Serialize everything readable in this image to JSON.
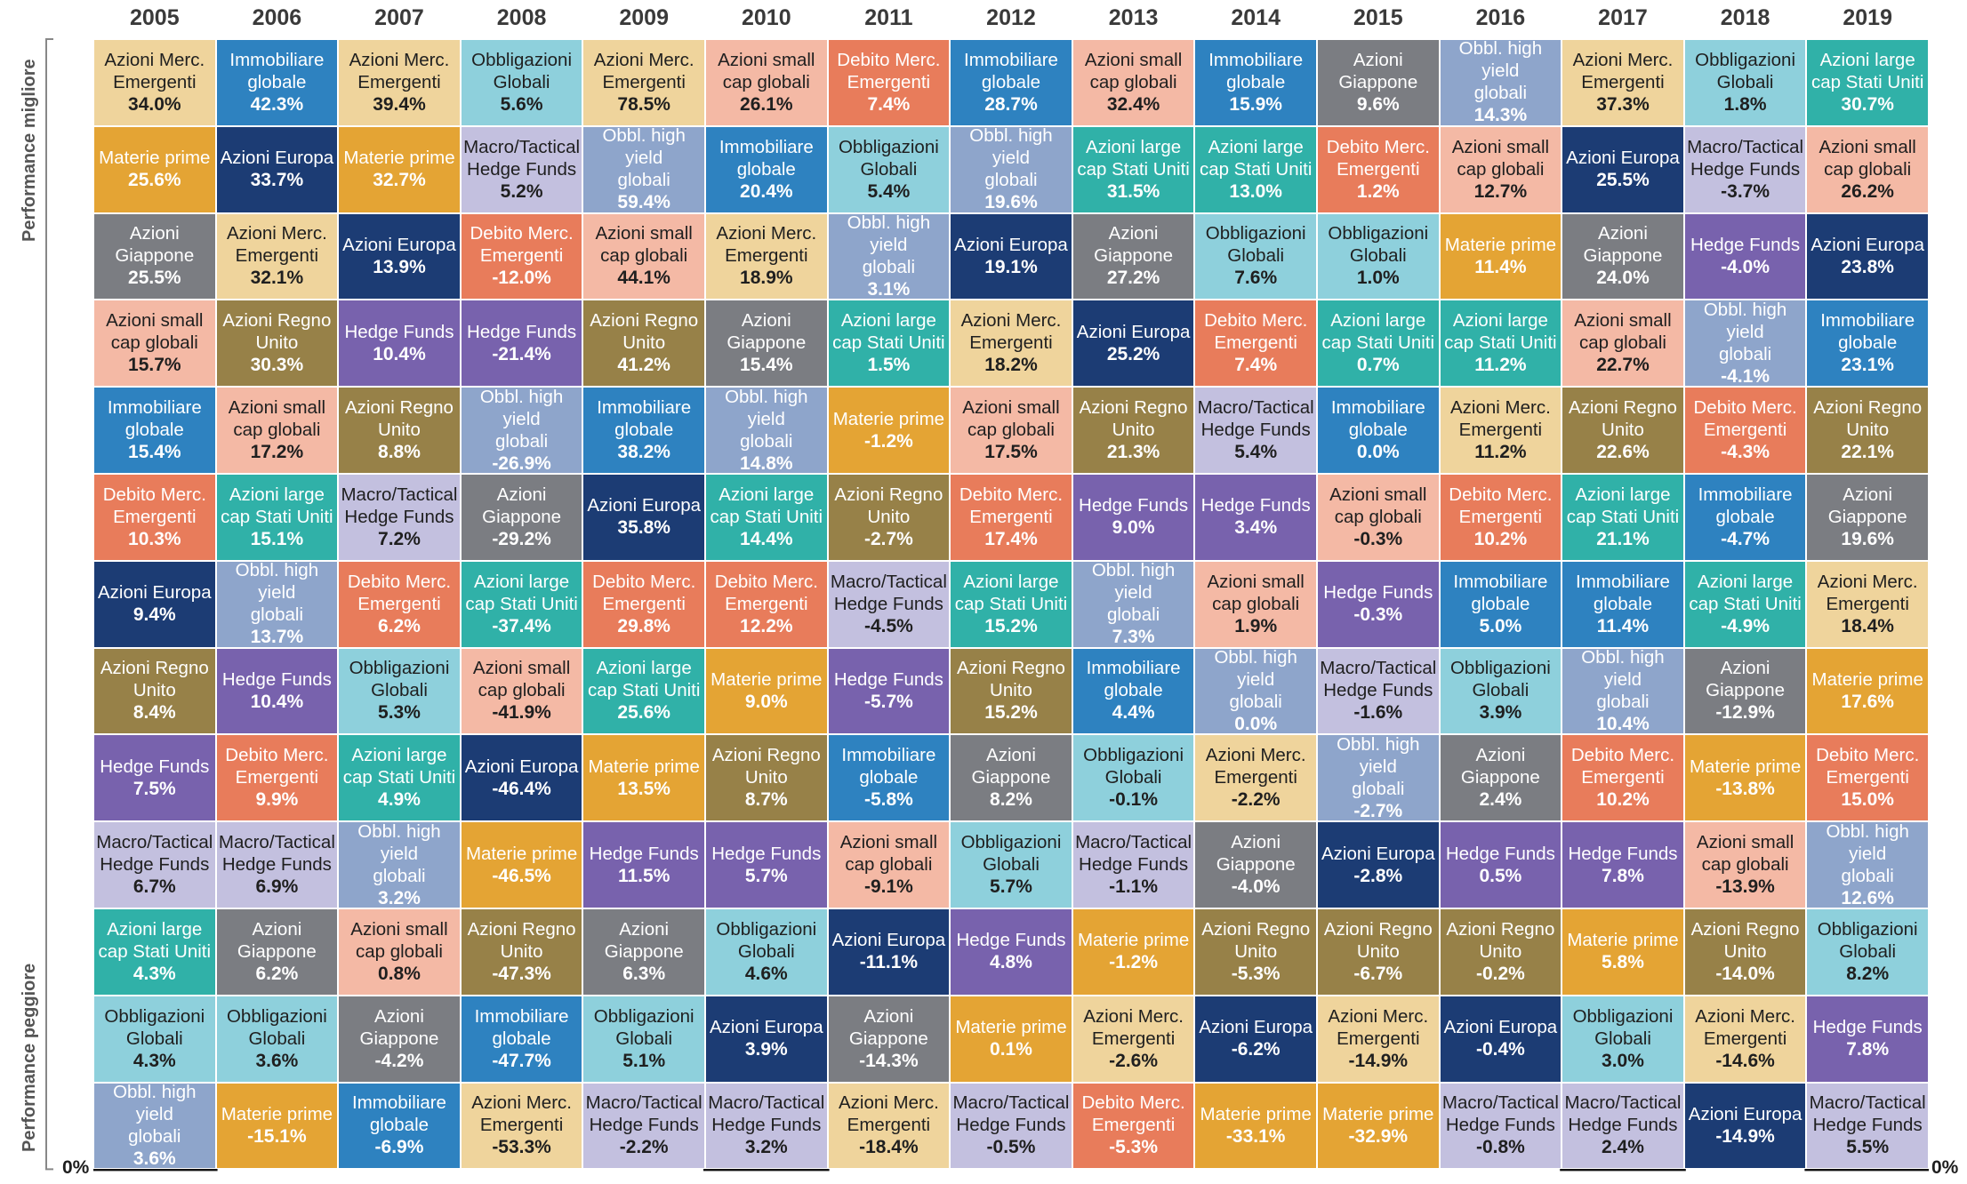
{
  "labels": {
    "top": "Performance migliore",
    "bottom": "Performance peggiore",
    "zero_left": "0%",
    "zero_right": "0%"
  },
  "colors": {
    "Azioni Merc. Emergenti": "#efd49c",
    "Immobiliare globale": "#2e82c0",
    "Obbligazioni Globali": "#8ed0dc",
    "Azioni small cap globali": "#f4b9a5",
    "Debito Merc. Emergenti": "#e87c5b",
    "Azioni Giappone": "#7b7d82",
    "Obbl. high yield globali": "#8ea5cb",
    "Azioni large cap Stati Uniti": "#30b1a8",
    "Materie prime": "#e4a434",
    "Azioni Europa": "#1c3c74",
    "Macro/Tactical Hedge Funds": "#c3c0df",
    "Hedge Funds": "#7862ad",
    "Azioni Regno Unito": "#978148"
  },
  "text_dark": [
    "Azioni Merc. Emergenti",
    "Obbligazioni Globali",
    "Azioni small cap globali",
    "Macro/Tactical Hedge Funds"
  ],
  "chart_data": {
    "type": "table",
    "title": "",
    "years": [
      "2005",
      "2006",
      "2007",
      "2008",
      "2009",
      "2010",
      "2011",
      "2012",
      "2013",
      "2014",
      "2015",
      "2016",
      "2017",
      "2018",
      "2019"
    ],
    "rank_order": "best to worst",
    "columns": [
      [
        [
          "Azioni Merc.\nEmergenti",
          "34.0%"
        ],
        [
          "Materie prime",
          "25.6%"
        ],
        [
          "Azioni\nGiappone",
          "25.5%"
        ],
        [
          "Azioni small\ncap globali",
          "15.7%"
        ],
        [
          "Immobiliare\nglobale",
          "15.4%"
        ],
        [
          "Debito Merc.\nEmergenti",
          "10.3%"
        ],
        [
          "Azioni Europa",
          "9.4%"
        ],
        [
          "Azioni Regno\nUnito",
          "8.4%"
        ],
        [
          "Hedge Funds",
          "7.5%"
        ],
        [
          "Macro/Tactical\nHedge Funds",
          "6.7%"
        ],
        [
          "Azioni large\ncap Stati Uniti",
          "4.3%"
        ],
        [
          "Obbligazioni\nGlobali",
          "4.3%"
        ],
        [
          "Obbl. high yield\nglobali",
          "3.6%"
        ]
      ],
      [
        [
          "Immobiliare\nglobale",
          "42.3%"
        ],
        [
          "Azioni Europa",
          "33.7%"
        ],
        [
          "Azioni Merc.\nEmergenti",
          "32.1%"
        ],
        [
          "Azioni Regno\nUnito",
          "30.3%"
        ],
        [
          "Azioni small\ncap globali",
          "17.2%"
        ],
        [
          "Azioni large\ncap Stati Uniti",
          "15.1%"
        ],
        [
          "Obbl. high yield\nglobali",
          "13.7%"
        ],
        [
          "Hedge Funds",
          "10.4%"
        ],
        [
          "Debito Merc.\nEmergenti",
          "9.9%"
        ],
        [
          "Macro/Tactical\nHedge Funds",
          "6.9%"
        ],
        [
          "Azioni\nGiappone",
          "6.2%"
        ],
        [
          "Obbligazioni\nGlobali",
          "3.6%"
        ],
        [
          "Materie prime",
          "-15.1%"
        ]
      ],
      [
        [
          "Azioni Merc.\nEmergenti",
          "39.4%"
        ],
        [
          "Materie prime",
          "32.7%"
        ],
        [
          "Azioni Europa",
          "13.9%"
        ],
        [
          "Hedge Funds",
          "10.4%"
        ],
        [
          "Azioni Regno\nUnito",
          "8.8%"
        ],
        [
          "Macro/Tactical\nHedge Funds",
          "7.2%"
        ],
        [
          "Debito Merc.\nEmergenti",
          "6.2%"
        ],
        [
          "Obbligazioni\nGlobali",
          "5.3%"
        ],
        [
          "Azioni large\ncap Stati Uniti",
          "4.9%"
        ],
        [
          "Obbl. high yield\nglobali",
          "3.2%"
        ],
        [
          "Azioni small\ncap globali",
          "0.8%"
        ],
        [
          "Azioni\nGiappone",
          "-4.2%"
        ],
        [
          "Immobiliare\nglobale",
          "-6.9%"
        ]
      ],
      [
        [
          "Obbligazioni\nGlobali",
          "5.6%"
        ],
        [
          "Macro/Tactical\nHedge Funds",
          "5.2%"
        ],
        [
          "Debito Merc.\nEmergenti",
          "-12.0%"
        ],
        [
          "Hedge Funds",
          "-21.4%"
        ],
        [
          "Obbl. high yield\nglobali",
          "-26.9%"
        ],
        [
          "Azioni\nGiappone",
          "-29.2%"
        ],
        [
          "Azioni large\ncap Stati Uniti",
          "-37.4%"
        ],
        [
          "Azioni small\ncap globali",
          "-41.9%"
        ],
        [
          "Azioni Europa",
          "-46.4%"
        ],
        [
          "Materie prime",
          "-46.5%"
        ],
        [
          "Azioni Regno\nUnito",
          "-47.3%"
        ],
        [
          "Immobiliare\nglobale",
          "-47.7%"
        ],
        [
          "Azioni Merc.\nEmergenti",
          "-53.3%"
        ]
      ],
      [
        [
          "Azioni Merc.\nEmergenti",
          "78.5%"
        ],
        [
          "Obbl. high yield\nglobali",
          "59.4%"
        ],
        [
          "Azioni small\ncap globali",
          "44.1%"
        ],
        [
          "Azioni Regno\nUnito",
          "41.2%"
        ],
        [
          "Immobiliare\nglobale",
          "38.2%"
        ],
        [
          "Azioni Europa",
          "35.8%"
        ],
        [
          "Debito Merc.\nEmergenti",
          "29.8%"
        ],
        [
          "Azioni large\ncap Stati Uniti",
          "25.6%"
        ],
        [
          "Materie prime",
          "13.5%"
        ],
        [
          "Hedge Funds",
          "11.5%"
        ],
        [
          "Azioni\nGiappone",
          "6.3%"
        ],
        [
          "Obbligazioni\nGlobali",
          "5.1%"
        ],
        [
          "Macro/Tactical\nHedge Funds",
          "-2.2%"
        ]
      ],
      [
        [
          "Azioni small\ncap globali",
          "26.1%"
        ],
        [
          "Immobiliare\nglobale",
          "20.4%"
        ],
        [
          "Azioni Merc.\nEmergenti",
          "18.9%"
        ],
        [
          "Azioni\nGiappone",
          "15.4%"
        ],
        [
          "Obbl. high yield\nglobali",
          "14.8%"
        ],
        [
          "Azioni large\ncap Stati Uniti",
          "14.4%"
        ],
        [
          "Debito Merc.\nEmergenti",
          "12.2%"
        ],
        [
          "Materie prime",
          "9.0%"
        ],
        [
          "Azioni Regno\nUnito",
          "8.7%"
        ],
        [
          "Hedge Funds",
          "5.7%"
        ],
        [
          "Obbligazioni\nGlobali",
          "4.6%"
        ],
        [
          "Azioni Europa",
          "3.9%"
        ],
        [
          "Macro/Tactical\nHedge Funds",
          "3.2%"
        ]
      ],
      [
        [
          "Debito Merc.\nEmergenti",
          "7.4%"
        ],
        [
          "Obbligazioni\nGlobali",
          "5.4%"
        ],
        [
          "Obbl. high yield\nglobali",
          "3.1%"
        ],
        [
          "Azioni large\ncap Stati Uniti",
          "1.5%"
        ],
        [
          "Materie prime",
          "-1.2%"
        ],
        [
          "Azioni Regno\nUnito",
          "-2.7%"
        ],
        [
          "Macro/Tactical\nHedge Funds",
          "-4.5%"
        ],
        [
          "Hedge Funds",
          "-5.7%"
        ],
        [
          "Immobiliare\nglobale",
          "-5.8%"
        ],
        [
          "Azioni small\ncap globali",
          "-9.1%"
        ],
        [
          "Azioni Europa",
          "-11.1%"
        ],
        [
          "Azioni\nGiappone",
          "-14.3%"
        ],
        [
          "Azioni Merc.\nEmergenti",
          "-18.4%"
        ]
      ],
      [
        [
          "Immobiliare\nglobale",
          "28.7%"
        ],
        [
          "Obbl. high yield\nglobali",
          "19.6%"
        ],
        [
          "Azioni Europa",
          "19.1%"
        ],
        [
          "Azioni Merc.\nEmergenti",
          "18.2%"
        ],
        [
          "Azioni small\ncap globali",
          "17.5%"
        ],
        [
          "Debito Merc.\nEmergenti",
          "17.4%"
        ],
        [
          "Azioni large\ncap Stati Uniti",
          "15.2%"
        ],
        [
          "Azioni Regno\nUnito",
          "15.2%"
        ],
        [
          "Azioni\nGiappone",
          "8.2%"
        ],
        [
          "Obbligazioni\nGlobali",
          "5.7%"
        ],
        [
          "Hedge Funds",
          "4.8%"
        ],
        [
          "Materie prime",
          "0.1%"
        ],
        [
          "Macro/Tactical\nHedge Funds",
          "-0.5%"
        ]
      ],
      [
        [
          "Azioni small\ncap globali",
          "32.4%"
        ],
        [
          "Azioni large\ncap Stati Uniti",
          "31.5%"
        ],
        [
          "Azioni\nGiappone",
          "27.2%"
        ],
        [
          "Azioni Europa",
          "25.2%"
        ],
        [
          "Azioni Regno\nUnito",
          "21.3%"
        ],
        [
          "Hedge Funds",
          "9.0%"
        ],
        [
          "Obbl. high yield\nglobali",
          "7.3%"
        ],
        [
          "Immobiliare\nglobale",
          "4.4%"
        ],
        [
          "Obbligazioni\nGlobali",
          "-0.1%"
        ],
        [
          "Macro/Tactical\nHedge Funds",
          "-1.1%"
        ],
        [
          "Materie prime",
          "-1.2%"
        ],
        [
          "Azioni Merc.\nEmergenti",
          "-2.6%"
        ],
        [
          "Debito Merc.\nEmergenti",
          "-5.3%"
        ]
      ],
      [
        [
          "Immobiliare\nglobale",
          "15.9%"
        ],
        [
          "Azioni large\ncap Stati Uniti",
          "13.0%"
        ],
        [
          "Obbligazioni\nGlobali",
          "7.6%"
        ],
        [
          "Debito Merc.\nEmergenti",
          "7.4%"
        ],
        [
          "Macro/Tactical\nHedge Funds",
          "5.4%"
        ],
        [
          "Hedge Funds",
          "3.4%"
        ],
        [
          "Azioni small\ncap globali",
          "1.9%"
        ],
        [
          "Obbl. high yield\nglobali",
          "0.0%"
        ],
        [
          "Azioni Merc.\nEmergenti",
          "-2.2%"
        ],
        [
          "Azioni\nGiappone",
          "-4.0%"
        ],
        [
          "Azioni Regno\nUnito",
          "-5.3%"
        ],
        [
          "Azioni Europa",
          "-6.2%"
        ],
        [
          "Materie prime",
          "-33.1%"
        ]
      ],
      [
        [
          "Azioni\nGiappone",
          "9.6%"
        ],
        [
          "Debito Merc.\nEmergenti",
          "1.2%"
        ],
        [
          "Obbligazioni\nGlobali",
          "1.0%"
        ],
        [
          "Azioni large\ncap Stati Uniti",
          "0.7%"
        ],
        [
          "Immobiliare\nglobale",
          "0.0%"
        ],
        [
          "Azioni small\ncap globali",
          "-0.3%"
        ],
        [
          "Hedge Funds",
          "-0.3%"
        ],
        [
          "Macro/Tactical\nHedge Funds",
          "-1.6%"
        ],
        [
          "Obbl. high yield\nglobali",
          "-2.7%"
        ],
        [
          "Azioni Europa",
          "-2.8%"
        ],
        [
          "Azioni Regno\nUnito",
          "-6.7%"
        ],
        [
          "Azioni Merc.\nEmergenti",
          "-14.9%"
        ],
        [
          "Materie prime",
          "-32.9%"
        ]
      ],
      [
        [
          "Obbl. high yield\nglobali",
          "14.3%"
        ],
        [
          "Azioni small\ncap globali",
          "12.7%"
        ],
        [
          "Materie prime",
          "11.4%"
        ],
        [
          "Azioni large\ncap Stati Uniti",
          "11.2%"
        ],
        [
          "Azioni Merc.\nEmergenti",
          "11.2%"
        ],
        [
          "Debito Merc.\nEmergenti",
          "10.2%"
        ],
        [
          "Immobiliare\nglobale",
          "5.0%"
        ],
        [
          "Obbligazioni\nGlobali",
          "3.9%"
        ],
        [
          "Azioni\nGiappone",
          "2.4%"
        ],
        [
          "Hedge Funds",
          "0.5%"
        ],
        [
          "Azioni Regno\nUnito",
          "-0.2%"
        ],
        [
          "Azioni Europa",
          "-0.4%"
        ],
        [
          "Macro/Tactical\nHedge Funds",
          "-0.8%"
        ]
      ],
      [
        [
          "Azioni Merc.\nEmergenti",
          "37.3%"
        ],
        [
          "Azioni Europa",
          "25.5%"
        ],
        [
          "Azioni\nGiappone",
          "24.0%"
        ],
        [
          "Azioni small\ncap globali",
          "22.7%"
        ],
        [
          "Azioni Regno\nUnito",
          "22.6%"
        ],
        [
          "Azioni large\ncap Stati Uniti",
          "21.1%"
        ],
        [
          "Immobiliare\nglobale",
          "11.4%"
        ],
        [
          "Obbl. high yield\nglobali",
          "10.4%"
        ],
        [
          "Debito Merc.\nEmergenti",
          "10.2%"
        ],
        [
          "Hedge Funds",
          "7.8%"
        ],
        [
          "Materie prime",
          "5.8%"
        ],
        [
          "Obbligazioni\nGlobali",
          "3.0%"
        ],
        [
          "Macro/Tactical\nHedge Funds",
          "2.4%"
        ]
      ],
      [
        [
          "Obbligazioni\nGlobali",
          "1.8%"
        ],
        [
          "Macro/Tactical\nHedge Funds",
          "-3.7%"
        ],
        [
          "Hedge Funds",
          "-4.0%"
        ],
        [
          "Obbl. high yield\nglobali",
          "-4.1%"
        ],
        [
          "Debito Merc.\nEmergenti",
          "-4.3%"
        ],
        [
          "Immobiliare\nglobale",
          "-4.7%"
        ],
        [
          "Azioni large\ncap Stati Uniti",
          "-4.9%"
        ],
        [
          "Azioni\nGiappone",
          "-12.9%"
        ],
        [
          "Materie prime",
          "-13.8%"
        ],
        [
          "Azioni small\ncap globali",
          "-13.9%"
        ],
        [
          "Azioni Regno\nUnito",
          "-14.0%"
        ],
        [
          "Azioni Merc.\nEmergenti",
          "-14.6%"
        ],
        [
          "Azioni Europa",
          "-14.9%"
        ]
      ],
      [
        [
          "Azioni large\ncap Stati Uniti",
          "30.7%"
        ],
        [
          "Azioni small\ncap globali",
          "26.2%"
        ],
        [
          "Azioni Europa",
          "23.8%"
        ],
        [
          "Immobiliare\nglobale",
          "23.1%"
        ],
        [
          "Azioni Regno\nUnito",
          "22.1%"
        ],
        [
          "Azioni\nGiappone",
          "19.6%"
        ],
        [
          "Azioni Merc.\nEmergenti",
          "18.4%"
        ],
        [
          "Materie prime",
          "17.6%"
        ],
        [
          "Debito Merc.\nEmergenti",
          "15.0%"
        ],
        [
          "Obbl. high yield\nglobali",
          "12.6%"
        ],
        [
          "Obbligazioni\nGlobali",
          "8.2%"
        ],
        [
          "Hedge Funds",
          "7.8%"
        ],
        [
          "Macro/Tactical\nHedge Funds",
          "5.5%"
        ]
      ]
    ]
  }
}
